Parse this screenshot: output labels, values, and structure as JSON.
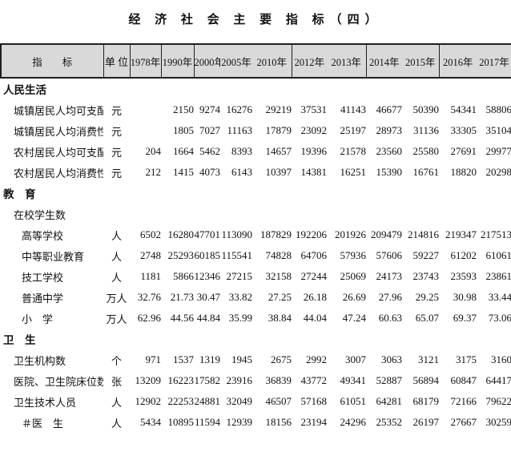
{
  "title": "经 济 社 会 主 要 指 标（四）",
  "colors": {
    "header_bg": "#d9d9d9",
    "border": "#1f1f1f",
    "text": "#111111"
  },
  "table": {
    "header": {
      "indicator": "指　　标",
      "unit": "单 位",
      "years": [
        "1978年",
        "1990年",
        "2000年",
        "2005年",
        "2010年",
        "2012年",
        "2013年",
        "2014年",
        "2015年",
        "2016年",
        "2017年"
      ]
    },
    "rows": [
      {
        "type": "section",
        "label": "人民生活"
      },
      {
        "type": "data",
        "indent": 1,
        "label": "城镇居民人均可支配收入",
        "unit": "元",
        "values": [
          "",
          "2150",
          "9274",
          "16276",
          "29219",
          "37531",
          "41143",
          "46677",
          "50390",
          "54341",
          "58806"
        ]
      },
      {
        "type": "data",
        "indent": 1,
        "label": "城镇居民人均消费性支出",
        "unit": "元",
        "values": [
          "",
          "1805",
          "7027",
          "11163",
          "17879",
          "23092",
          "25197",
          "28973",
          "31136",
          "33305",
          "35104"
        ]
      },
      {
        "type": "data",
        "indent": 1,
        "label": "农村居民人均可支配收入",
        "unit": "元",
        "values": [
          "204",
          "1664",
          "5462",
          "8393",
          "14657",
          "19396",
          "21578",
          "23560",
          "25580",
          "27691",
          "29977"
        ]
      },
      {
        "type": "data",
        "indent": 1,
        "label": "农村居民人均消费性支出",
        "unit": "元",
        "values": [
          "212",
          "1415",
          "4073",
          "6143",
          "10397",
          "14381",
          "16251",
          "15390",
          "16761",
          "18820",
          "20298"
        ]
      },
      {
        "type": "section",
        "label": "教　育"
      },
      {
        "type": "data",
        "indent": 1,
        "label": "在校学生数",
        "unit": "",
        "values": [
          "",
          "",
          "",
          "",
          "",
          "",
          "",
          "",
          "",
          "",
          ""
        ]
      },
      {
        "type": "data",
        "indent": 2,
        "label": "高等学校",
        "unit": "人",
        "values": [
          "6502",
          "16280",
          "47701",
          "113090",
          "187829",
          "192206",
          "201926",
          "209479",
          "214816",
          "219347",
          "217513"
        ]
      },
      {
        "type": "data",
        "indent": 2,
        "label": "中等职业教育",
        "unit": "人",
        "values": [
          "2748",
          "25293",
          "60185",
          "115541",
          "74828",
          "64706",
          "57936",
          "57606",
          "59227",
          "61202",
          "61061"
        ]
      },
      {
        "type": "data",
        "indent": 2,
        "label": "技工学校",
        "unit": "人",
        "values": [
          "1181",
          "5866",
          "12346",
          "27215",
          "32158",
          "27244",
          "25069",
          "24173",
          "23743",
          "23593",
          "23861"
        ]
      },
      {
        "type": "data",
        "indent": 2,
        "label": "普通中学",
        "unit": "万人",
        "values": [
          "32.76",
          "21.73",
          "30.47",
          "33.82",
          "27.25",
          "26.18",
          "26.69",
          "27.96",
          "29.25",
          "30.98",
          "33.44"
        ]
      },
      {
        "type": "data",
        "indent": 2,
        "label": "小　学",
        "unit": "万人",
        "values": [
          "62.96",
          "44.56",
          "44.84",
          "35.99",
          "38.84",
          "44.04",
          "47.24",
          "60.63",
          "65.07",
          "69.37",
          "73.06"
        ]
      },
      {
        "type": "section",
        "label": "卫　生"
      },
      {
        "type": "data",
        "indent": 1,
        "label": "卫生机构数",
        "unit": "个",
        "values": [
          "971",
          "1537",
          "1319",
          "1945",
          "2675",
          "2992",
          "3007",
          "3063",
          "3121",
          "3175",
          "3160"
        ]
      },
      {
        "type": "data",
        "indent": 1,
        "label": "医院、卫生院床位数",
        "unit": "张",
        "values": [
          "13209",
          "16223",
          "17582",
          "23916",
          "36839",
          "43772",
          "49341",
          "52887",
          "56894",
          "60847",
          "64417"
        ]
      },
      {
        "type": "data",
        "indent": 1,
        "label": "卫生技术人员",
        "unit": "人",
        "values": [
          "12902",
          "22253",
          "24881",
          "32049",
          "46507",
          "57168",
          "61051",
          "64281",
          "68179",
          "72166",
          "79622"
        ]
      },
      {
        "type": "data",
        "indent": 2,
        "label": "＃医　生",
        "unit": "人",
        "values": [
          "5434",
          "10895",
          "11594",
          "12939",
          "18156",
          "23194",
          "24296",
          "25352",
          "26197",
          "27667",
          "30259"
        ]
      }
    ]
  }
}
